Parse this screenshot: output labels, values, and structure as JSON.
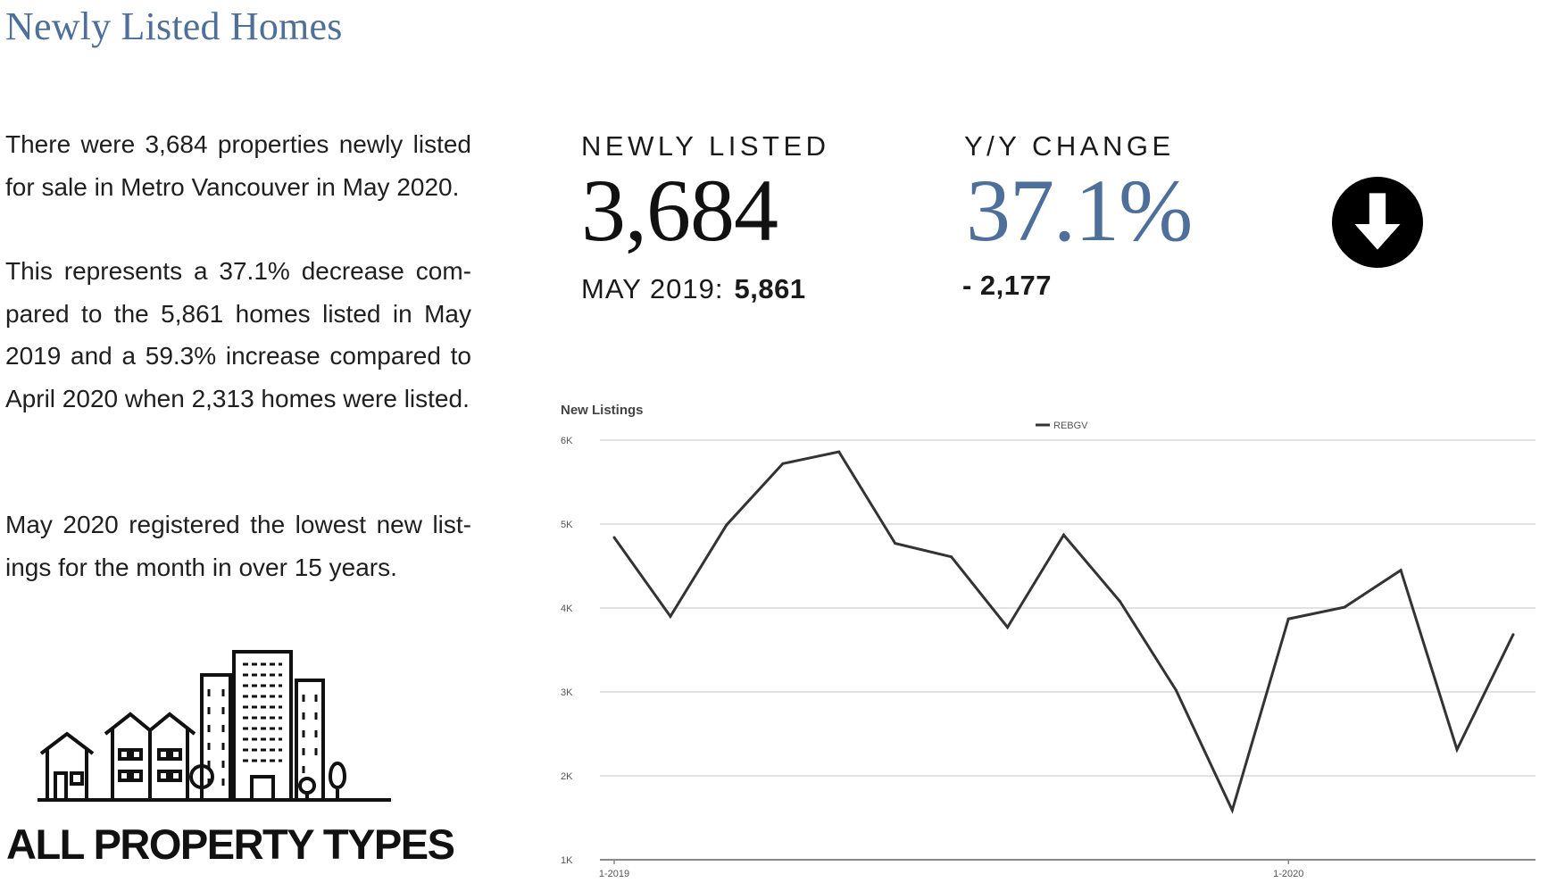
{
  "header": {
    "title": "Newly Listed Homes"
  },
  "summary": {
    "paragraphs": [
      "There were 3,684 properties newly listed for sale in Metro Vancouver in May 2020.",
      "This represents a 37.1% decrease com­pared to the 5,861 homes listed in May 2019 and a 59.3% increase compared to April 2020 when 2,313 homes were list­ed.",
      "May 2020 registered the lowest new list­ings for the month in over 15 years."
    ]
  },
  "kpis": {
    "newly_listed": {
      "label": "NEWLY LISTED",
      "value": "3,684",
      "previous_label": "MAY 2019:",
      "previous_value": "5,861"
    },
    "yoy_change": {
      "label": "Y/Y CHANGE",
      "value": "37.1%",
      "difference": "- 2,177",
      "direction_icon": "down-arrow-icon",
      "icon_color": "#000000"
    }
  },
  "property": {
    "caption": "ALL PROPERTY TYPES",
    "icon": "city-buildings-icon"
  },
  "colors": {
    "accent": "#4e6f9a",
    "line": "#333333",
    "grid": "#d9d9d9"
  },
  "chart_data": {
    "type": "line",
    "title": "New Listings",
    "legend": {
      "entries": [
        "REBGV"
      ],
      "position": "top-center"
    },
    "x": [
      "2019-01",
      "2019-02",
      "2019-03",
      "2019-04",
      "2019-05",
      "2019-06",
      "2019-07",
      "2019-08",
      "2019-09",
      "2019-10",
      "2019-11",
      "2019-12",
      "2020-01",
      "2020-02",
      "2020-03",
      "2020-04",
      "2020-05"
    ],
    "x_tick_labels": [
      {
        "at": "2019-01",
        "label": "1-2019"
      },
      {
        "at": "2020-01",
        "label": "1-2020"
      }
    ],
    "series": [
      {
        "name": "REBGV",
        "values": [
          4840,
          3900,
          4990,
          5720,
          5861,
          4770,
          4610,
          3770,
          4870,
          4080,
          3020,
          1590,
          3870,
          4010,
          4450,
          2313,
          3684
        ]
      }
    ],
    "ylim": [
      1000,
      6000
    ],
    "y_ticks": [
      1000,
      2000,
      3000,
      4000,
      5000,
      6000
    ],
    "y_tick_labels": [
      "1K",
      "2K",
      "3K",
      "4K",
      "5K",
      "6K"
    ],
    "grid": true
  }
}
